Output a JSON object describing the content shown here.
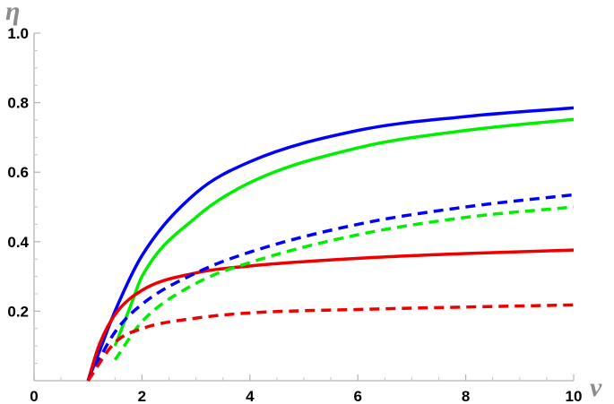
{
  "chart_data": {
    "type": "line",
    "xlabel": "ν",
    "ylabel": "η",
    "xlim": [
      0,
      10
    ],
    "ylim": [
      0,
      1.0
    ],
    "x_ticks": [
      {
        "value": 0,
        "label": "0"
      },
      {
        "value": 2,
        "label": "2"
      },
      {
        "value": 4,
        "label": "4"
      },
      {
        "value": 6,
        "label": "6"
      },
      {
        "value": 8,
        "label": "8"
      },
      {
        "value": 10,
        "label": "10"
      }
    ],
    "y_ticks": [
      {
        "value": 0.2,
        "label": "0.2"
      },
      {
        "value": 0.4,
        "label": "0.4"
      },
      {
        "value": 0.6,
        "label": "0.6"
      },
      {
        "value": 0.8,
        "label": "0.8"
      },
      {
        "value": 1.0,
        "label": "1.0"
      }
    ],
    "grid": false,
    "series": [
      {
        "color": "#0000ff",
        "style": "solid",
        "x": [
          1.0,
          1.2,
          1.5,
          2.0,
          3.0,
          4.0,
          6.0,
          8.0,
          10.0
        ],
        "y": [
          0.0,
          0.08,
          0.2,
          0.36,
          0.54,
          0.63,
          0.72,
          0.76,
          0.785
        ]
      },
      {
        "color": "#00ee00",
        "style": "solid",
        "x": [
          1.5,
          1.8,
          2.0,
          3.0,
          4.0,
          6.0,
          8.0,
          10.0
        ],
        "y": [
          0.1,
          0.22,
          0.3,
          0.47,
          0.57,
          0.67,
          0.72,
          0.752
        ]
      },
      {
        "color": "#ee0000",
        "style": "solid",
        "x": [
          1.0,
          1.2,
          1.5,
          2.0,
          3.0,
          4.0,
          6.0,
          8.0,
          10.0
        ],
        "y": [
          0.0,
          0.1,
          0.19,
          0.26,
          0.31,
          0.33,
          0.352,
          0.366,
          0.376
        ]
      },
      {
        "color": "#0000ff",
        "style": "dashed",
        "x": [
          1.0,
          1.5,
          2.0,
          3.0,
          4.0,
          6.0,
          8.0,
          10.0
        ],
        "y": [
          0.0,
          0.14,
          0.22,
          0.31,
          0.37,
          0.45,
          0.5,
          0.535
        ]
      },
      {
        "color": "#00ee00",
        "style": "dashed",
        "x": [
          1.5,
          2.0,
          3.0,
          4.0,
          6.0,
          8.0,
          10.0
        ],
        "y": [
          0.06,
          0.17,
          0.28,
          0.34,
          0.42,
          0.47,
          0.5
        ]
      },
      {
        "color": "#ee0000",
        "style": "dashed",
        "x": [
          1.0,
          1.5,
          2.0,
          3.0,
          4.0,
          6.0,
          8.0,
          10.0
        ],
        "y": [
          0.0,
          0.11,
          0.15,
          0.18,
          0.195,
          0.205,
          0.212,
          0.218
        ]
      }
    ]
  }
}
